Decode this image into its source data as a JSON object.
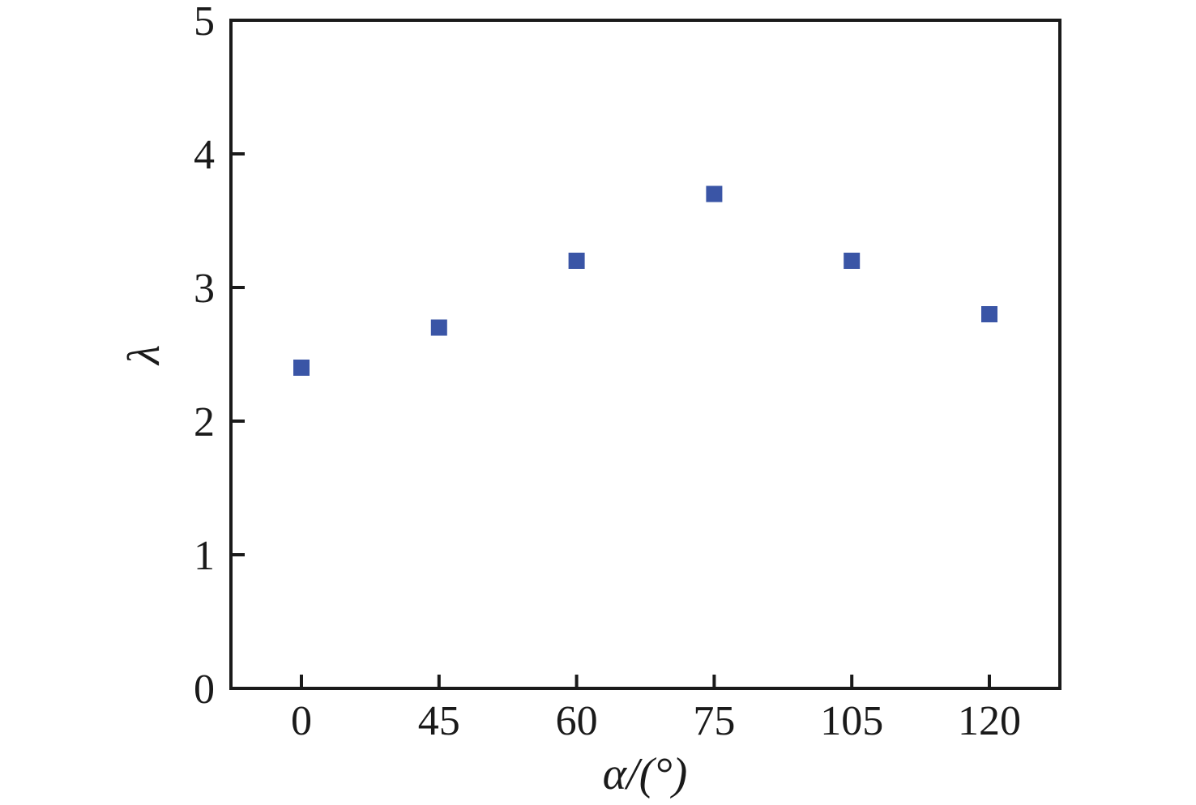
{
  "figure": {
    "background": "#ffffff"
  },
  "chart_data": {
    "type": "scatter",
    "series_name": "lambda-vs-alpha",
    "marker": "filled-square",
    "marker_color": "#3a55a6",
    "marker_size_px": 20,
    "axis_color": "#1a1a1a",
    "categories": [
      "0",
      "45",
      "60",
      "75",
      "105",
      "120"
    ],
    "values": [
      2.4,
      2.7,
      3.2,
      3.7,
      3.2,
      2.8
    ],
    "xlabel": "α/(°)",
    "ylabel": "λ",
    "x_axis_type": "categorical",
    "ylim": [
      0,
      5
    ],
    "yticks": [
      0,
      1,
      2,
      3,
      4,
      5
    ],
    "grid": false,
    "legend": "none"
  }
}
